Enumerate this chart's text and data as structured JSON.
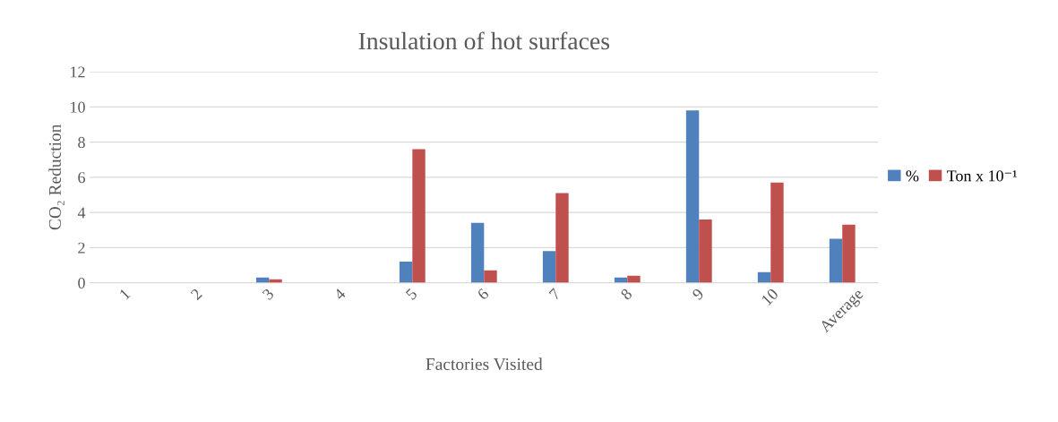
{
  "chart_data": {
    "type": "bar",
    "title": "Insulation of hot surfaces",
    "xlabel": "Factories Visited",
    "ylabel": "CO₂ Reduction",
    "categories": [
      "1",
      "2",
      "3",
      "4",
      "5",
      "6",
      "7",
      "8",
      "9",
      "10",
      "Average"
    ],
    "series": [
      {
        "name": "%",
        "color": "#4f81bd",
        "values": [
          0,
          0,
          0.3,
          0,
          1.2,
          3.4,
          1.8,
          0.3,
          9.8,
          0.6,
          2.5
        ]
      },
      {
        "name": "Ton x 10⁻¹",
        "color": "#c0504d",
        "values": [
          0,
          0,
          0.2,
          0,
          7.6,
          0.7,
          5.1,
          0.4,
          3.6,
          5.7,
          3.3
        ]
      }
    ],
    "ylim": [
      0,
      12
    ],
    "yticks": [
      0,
      2,
      4,
      6,
      8,
      10,
      12
    ],
    "grid": "y",
    "legend": "right"
  }
}
